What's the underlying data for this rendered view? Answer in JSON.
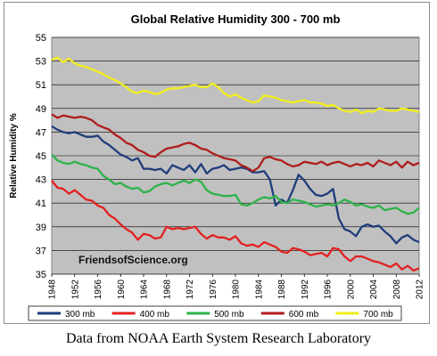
{
  "caption": "Data from NOAA Earth System Research Laboratory",
  "chart_data": {
    "type": "line",
    "title": "Global Relative Humidity 300 - 700 mb",
    "xlabel": "",
    "ylabel": "Relative Humidity %",
    "watermark": "FriendsofScience.org",
    "xlim": [
      1948,
      2012
    ],
    "ylim": [
      35,
      55
    ],
    "x_ticks": [
      1948,
      1952,
      1956,
      1960,
      1964,
      1968,
      1972,
      1976,
      1980,
      1984,
      1988,
      1992,
      1996,
      2000,
      2004,
      2008,
      2012
    ],
    "y_ticks": [
      35,
      37,
      39,
      41,
      43,
      45,
      47,
      49,
      51,
      53,
      55
    ],
    "grid": true,
    "plot_background": "#c0c0c0",
    "legend_position": "bottom",
    "x": [
      1948,
      1949,
      1950,
      1951,
      1952,
      1953,
      1954,
      1955,
      1956,
      1957,
      1958,
      1959,
      1960,
      1961,
      1962,
      1963,
      1964,
      1965,
      1966,
      1967,
      1968,
      1969,
      1970,
      1971,
      1972,
      1973,
      1974,
      1975,
      1976,
      1977,
      1978,
      1979,
      1980,
      1981,
      1982,
      1983,
      1984,
      1985,
      1986,
      1987,
      1988,
      1989,
      1990,
      1991,
      1992,
      1993,
      1994,
      1995,
      1996,
      1997,
      1998,
      1999,
      2000,
      2001,
      2002,
      2003,
      2004,
      2005,
      2006,
      2007,
      2008,
      2009,
      2010,
      2011,
      2012
    ],
    "series": [
      {
        "name": "300 mb",
        "color": "#1f3d7a",
        "values": [
          47.5,
          47.2,
          47.0,
          46.9,
          47.0,
          46.8,
          46.6,
          46.6,
          46.7,
          46.2,
          45.9,
          45.5,
          45.1,
          44.9,
          44.6,
          44.8,
          43.9,
          43.9,
          43.8,
          43.9,
          43.5,
          44.2,
          44.0,
          43.8,
          44.2,
          43.6,
          44.3,
          43.5,
          43.9,
          44.0,
          44.2,
          43.8,
          43.9,
          44.0,
          43.9,
          43.6,
          43.6,
          43.7,
          43.0,
          40.8,
          41.3,
          41.0,
          42.1,
          43.4,
          42.9,
          42.2,
          41.7,
          41.6,
          41.8,
          42.2,
          39.7,
          38.8,
          38.6,
          38.2,
          39.0,
          39.2,
          39.0,
          39.1,
          38.6,
          38.2,
          37.6,
          38.1,
          38.3,
          37.9,
          37.7
        ]
      },
      {
        "name": "400 mb",
        "color": "#e32121",
        "values": [
          42.9,
          42.3,
          42.2,
          41.8,
          42.1,
          41.7,
          41.3,
          41.2,
          40.8,
          40.6,
          40.0,
          39.7,
          39.2,
          38.8,
          38.5,
          37.9,
          38.4,
          38.3,
          38.0,
          38.1,
          39.0,
          38.8,
          38.9,
          38.8,
          38.9,
          39.0,
          38.4,
          38.0,
          38.3,
          38.1,
          38.1,
          37.9,
          38.2,
          37.6,
          37.4,
          37.5,
          37.3,
          37.7,
          37.5,
          37.3,
          36.9,
          36.8,
          37.2,
          37.1,
          36.9,
          36.6,
          36.7,
          36.8,
          36.5,
          37.2,
          37.1,
          36.5,
          36.1,
          36.5,
          36.5,
          36.3,
          36.1,
          36.0,
          35.8,
          35.6,
          35.9,
          35.4,
          35.7,
          35.3,
          35.5
        ]
      },
      {
        "name": "500 mb",
        "color": "#2eb34a",
        "values": [
          45.1,
          44.6,
          44.4,
          44.3,
          44.5,
          44.3,
          44.2,
          44.0,
          43.9,
          43.3,
          43.0,
          42.6,
          42.7,
          42.4,
          42.2,
          42.3,
          41.9,
          42.0,
          42.4,
          42.6,
          42.7,
          42.5,
          42.7,
          42.9,
          42.7,
          43.0,
          42.8,
          42.1,
          41.8,
          41.7,
          41.6,
          41.6,
          41.7,
          40.9,
          40.8,
          41.0,
          41.3,
          41.5,
          41.4,
          41.6,
          41.1,
          41.0,
          41.3,
          41.2,
          41.1,
          40.9,
          40.7,
          40.8,
          40.9,
          40.8,
          41.0,
          41.3,
          41.1,
          40.8,
          40.9,
          40.7,
          40.6,
          40.8,
          40.4,
          40.5,
          40.6,
          40.3,
          40.1,
          40.2,
          40.6
        ]
      },
      {
        "name": "600 mb",
        "color": "#b01c1c",
        "values": [
          48.5,
          48.2,
          48.4,
          48.3,
          48.2,
          48.3,
          48.2,
          48.0,
          47.6,
          47.4,
          47.2,
          46.8,
          46.5,
          46.1,
          45.9,
          45.5,
          45.3,
          45.0,
          44.9,
          45.3,
          45.6,
          45.7,
          45.8,
          46.0,
          46.1,
          45.9,
          45.6,
          45.5,
          45.2,
          45.0,
          44.8,
          44.7,
          44.6,
          44.2,
          44.0,
          43.7,
          44.0,
          44.8,
          44.9,
          44.7,
          44.6,
          44.3,
          44.1,
          44.2,
          44.5,
          44.4,
          44.3,
          44.5,
          44.2,
          44.4,
          44.5,
          44.3,
          44.1,
          44.3,
          44.2,
          44.4,
          44.1,
          44.6,
          44.4,
          44.2,
          44.5,
          44.0,
          44.5,
          44.2,
          44.4
        ]
      },
      {
        "name": "700 mb",
        "color": "#f2ee1d",
        "values": [
          53.1,
          53.3,
          52.9,
          53.2,
          52.8,
          52.6,
          52.5,
          52.3,
          52.1,
          51.9,
          51.6,
          51.4,
          51.1,
          50.8,
          50.4,
          50.3,
          50.5,
          50.4,
          50.2,
          50.3,
          50.6,
          50.7,
          50.7,
          50.8,
          50.9,
          51.0,
          50.8,
          50.8,
          51.1,
          50.8,
          50.3,
          50.0,
          50.2,
          49.9,
          49.7,
          49.5,
          49.6,
          50.1,
          50.0,
          49.9,
          49.7,
          49.6,
          49.5,
          49.6,
          49.7,
          49.5,
          49.5,
          49.4,
          49.2,
          49.3,
          49.0,
          48.8,
          48.7,
          48.9,
          48.6,
          48.8,
          48.7,
          49.0,
          48.9,
          48.8,
          48.8,
          49.0,
          48.9,
          48.8,
          48.7
        ]
      }
    ]
  }
}
